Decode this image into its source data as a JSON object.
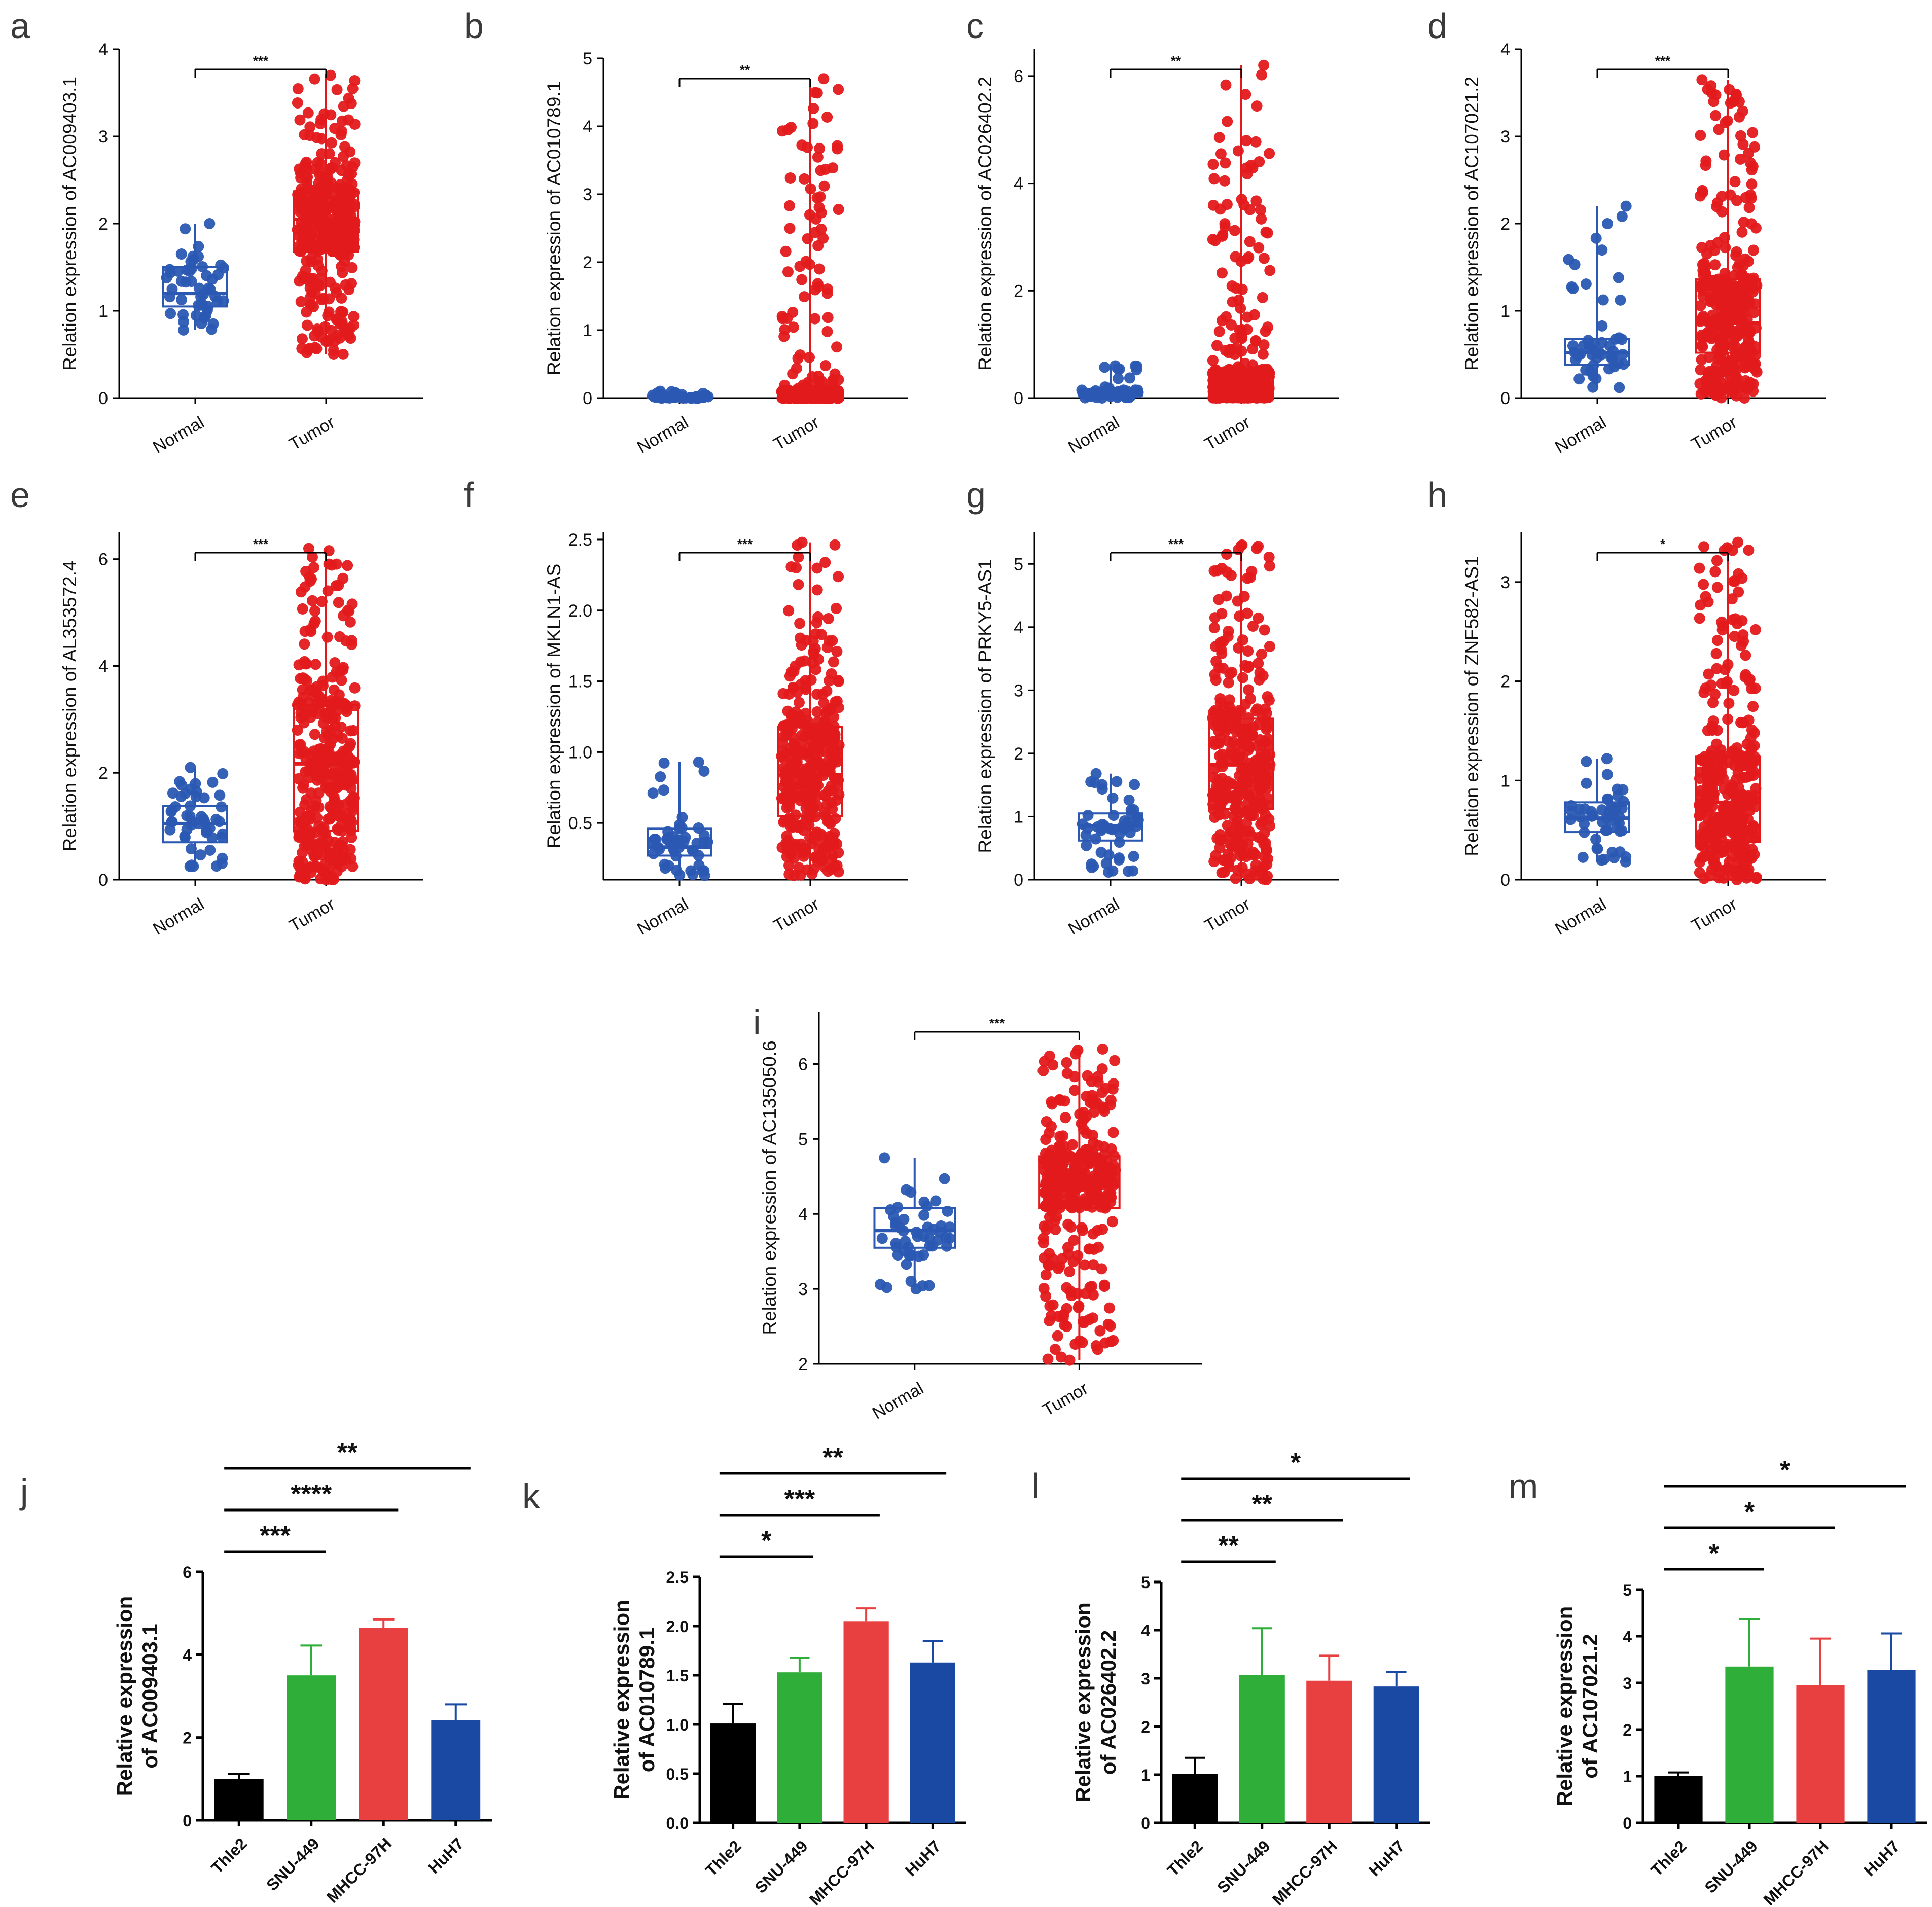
{
  "colors": {
    "normal": "#2a58b3",
    "tumor": "#e31a1c",
    "black": "#000000",
    "green": "#2fae3a",
    "red_bar": "#e84040",
    "blue_bar": "#1a49a3"
  },
  "chart_data": [
    {
      "panel": "a",
      "type": "box_strip",
      "ylabel": "Relation expression of AC009403.1",
      "categories": [
        "Normal",
        "Tumor"
      ],
      "ylim": [
        0,
        4
      ],
      "yticks": [
        0,
        1,
        2,
        3,
        4
      ],
      "normal": {
        "q1": 1.05,
        "median": 1.2,
        "q3": 1.5,
        "lo": 0.78,
        "hi": 2.0,
        "n": 50
      },
      "tumor": {
        "q1": 1.68,
        "median": 2.05,
        "q3": 2.37,
        "lo": 0.5,
        "hi": 3.7,
        "n": 350
      },
      "significance": "***"
    },
    {
      "panel": "b",
      "type": "box_strip",
      "ylabel": "Relation expression of AC010789.1",
      "categories": [
        "Normal",
        "Tumor"
      ],
      "ylim": [
        0,
        5
      ],
      "yticks": [
        0,
        1,
        2,
        3,
        4,
        5
      ],
      "normal": {
        "q1": 0.0,
        "median": 0.01,
        "q3": 0.02,
        "lo": 0.0,
        "hi": 0.1,
        "n": 50
      },
      "tumor": {
        "q1": 0.0,
        "median": 0.05,
        "q3": 0.12,
        "lo": 0.0,
        "hi": 4.7,
        "n": 350
      },
      "significance": "**"
    },
    {
      "panel": "c",
      "type": "box_strip",
      "ylabel": "Relation expression of AC026402.2",
      "categories": [
        "Normal",
        "Tumor"
      ],
      "ylim": [
        0,
        6.5
      ],
      "yticks": [
        0,
        2,
        4,
        6
      ],
      "normal": {
        "q1": 0.05,
        "median": 0.1,
        "q3": 0.15,
        "lo": 0.0,
        "hi": 0.6,
        "n": 50
      },
      "tumor": {
        "q1": 0.02,
        "median": 0.15,
        "q3": 0.52,
        "lo": 0.0,
        "hi": 6.2,
        "n": 350
      },
      "significance": "**"
    },
    {
      "panel": "d",
      "type": "box_strip",
      "ylabel": "Relation expression of AC107021.2",
      "categories": [
        "Normal",
        "Tumor"
      ],
      "ylim": [
        0,
        4
      ],
      "yticks": [
        0,
        1,
        2,
        3,
        4
      ],
      "normal": {
        "q1": 0.38,
        "median": 0.52,
        "q3": 0.68,
        "lo": 0.12,
        "hi": 2.2,
        "n": 50
      },
      "tumor": {
        "q1": 0.52,
        "median": 0.86,
        "q3": 1.36,
        "lo": 0.0,
        "hi": 3.65,
        "n": 350
      },
      "significance": "***"
    },
    {
      "panel": "e",
      "type": "box_strip",
      "ylabel": "Relation expression of AL353572.4",
      "categories": [
        "Normal",
        "Tumor"
      ],
      "ylim": [
        0,
        6.5
      ],
      "yticks": [
        0,
        2,
        4,
        6
      ],
      "normal": {
        "q1": 0.7,
        "median": 1.05,
        "q3": 1.38,
        "lo": 0.25,
        "hi": 2.1,
        "n": 50
      },
      "tumor": {
        "q1": 0.92,
        "median": 2.17,
        "q3": 3.27,
        "lo": 0.0,
        "hi": 6.2,
        "n": 350
      },
      "significance": "***"
    },
    {
      "panel": "f",
      "type": "box_strip",
      "ylabel": "Relation expression of MKLN1-AS",
      "categories": [
        "Normal",
        "Tumor"
      ],
      "ylim": [
        0.1,
        2.55
      ],
      "yticks": [
        0.5,
        1.0,
        1.5,
        2.0,
        2.5
      ],
      "ytick_labels": [
        "0.5",
        "1.0",
        "1.5",
        "2.0",
        "2.5"
      ],
      "normal": {
        "q1": 0.27,
        "median": 0.33,
        "q3": 0.46,
        "lo": 0.13,
        "hi": 0.93,
        "n": 50
      },
      "tumor": {
        "q1": 0.55,
        "median": 0.84,
        "q3": 1.18,
        "lo": 0.13,
        "hi": 2.48,
        "n": 350
      },
      "significance": "***"
    },
    {
      "panel": "g",
      "type": "box_strip",
      "ylabel": "Relation expression of PRKY5-AS1",
      "categories": [
        "Normal",
        "Tumor"
      ],
      "ylim": [
        0,
        5.5
      ],
      "yticks": [
        0,
        1,
        2,
        3,
        4,
        5
      ],
      "normal": {
        "q1": 0.62,
        "median": 0.85,
        "q3": 1.05,
        "lo": 0.12,
        "hi": 1.68,
        "n": 50
      },
      "tumor": {
        "q1": 1.12,
        "median": 1.82,
        "q3": 2.55,
        "lo": 0.0,
        "hi": 5.3,
        "n": 350
      },
      "significance": "***"
    },
    {
      "panel": "h",
      "type": "box_strip",
      "ylabel": "Relation expression of ZNF582-AS1",
      "categories": [
        "Normal",
        "Tumor"
      ],
      "ylim": [
        0,
        3.5
      ],
      "yticks": [
        0,
        1,
        2,
        3
      ],
      "normal": {
        "q1": 0.48,
        "median": 0.62,
        "q3": 0.78,
        "lo": 0.18,
        "hi": 1.22,
        "n": 50
      },
      "tumor": {
        "q1": 0.38,
        "median": 0.78,
        "q3": 1.24,
        "lo": 0.0,
        "hi": 3.4,
        "n": 350
      },
      "significance": "*"
    },
    {
      "panel": "i",
      "type": "box_strip",
      "ylabel": "Relation expression of AC135050.6",
      "categories": [
        "Normal",
        "Tumor"
      ],
      "ylim": [
        2,
        6.7
      ],
      "yticks": [
        2,
        3,
        4,
        5,
        6
      ],
      "normal": {
        "q1": 3.55,
        "median": 3.78,
        "q3": 4.08,
        "lo": 3.0,
        "hi": 4.75,
        "n": 50
      },
      "tumor": {
        "q1": 4.08,
        "median": 4.38,
        "q3": 4.77,
        "lo": 2.05,
        "hi": 6.2,
        "n": 350
      },
      "significance": "***"
    },
    {
      "panel": "j",
      "type": "bar",
      "ylabel_lines": [
        "Relative expression",
        "of AC009403.1"
      ],
      "categories": [
        "Thle2",
        "SNU-449",
        "MHCC-97H",
        "HuH7"
      ],
      "values": [
        1.0,
        3.5,
        4.65,
        2.42
      ],
      "errors": [
        0.12,
        0.72,
        0.2,
        0.38
      ],
      "ylim": [
        0,
        6
      ],
      "yticks": [
        0,
        2,
        4,
        6
      ],
      "ytick_labels": [
        "0",
        "2",
        "4",
        "6"
      ],
      "comparisons": [
        {
          "from": 0,
          "to": 1,
          "label": "***"
        },
        {
          "from": 0,
          "to": 2,
          "label": "****"
        },
        {
          "from": 0,
          "to": 3,
          "label": "**"
        }
      ]
    },
    {
      "panel": "k",
      "type": "bar",
      "ylabel_lines": [
        "Relative expression",
        "of AC010789.1"
      ],
      "categories": [
        "Thle2",
        "SNU-449",
        "MHCC-97H",
        "HuH7"
      ],
      "values": [
        1.01,
        1.53,
        2.05,
        1.63
      ],
      "errors": [
        0.2,
        0.15,
        0.13,
        0.22
      ],
      "ylim": [
        0,
        2.5
      ],
      "yticks": [
        0,
        0.5,
        1.0,
        1.5,
        2.0,
        2.5
      ],
      "ytick_labels": [
        "0.0",
        "0.5",
        "1.0",
        "1.5",
        "2.0",
        "2.5"
      ],
      "comparisons": [
        {
          "from": 0,
          "to": 1,
          "label": "*"
        },
        {
          "from": 0,
          "to": 2,
          "label": "***"
        },
        {
          "from": 0,
          "to": 3,
          "label": "**"
        }
      ]
    },
    {
      "panel": "l",
      "type": "bar",
      "ylabel_lines": [
        "Relative expression",
        "of AC026402.2"
      ],
      "categories": [
        "Thle2",
        "SNU-449",
        "MHCC-97H",
        "HuH7"
      ],
      "values": [
        1.02,
        3.07,
        2.95,
        2.83
      ],
      "errors": [
        0.33,
        0.97,
        0.52,
        0.3
      ],
      "ylim": [
        0,
        5
      ],
      "yticks": [
        0,
        1,
        2,
        3,
        4,
        5
      ],
      "ytick_labels": [
        "0",
        "1",
        "2",
        "3",
        "4",
        "5"
      ],
      "comparisons": [
        {
          "from": 0,
          "to": 1,
          "label": "**"
        },
        {
          "from": 0,
          "to": 2,
          "label": "**"
        },
        {
          "from": 0,
          "to": 3,
          "label": "*"
        }
      ]
    },
    {
      "panel": "m",
      "type": "bar",
      "ylabel_lines": [
        "Relative expression",
        "of AC107021.2"
      ],
      "categories": [
        "Thle2",
        "SNU-449",
        "MHCC-97H",
        "HuH7"
      ],
      "values": [
        1.0,
        3.35,
        2.95,
        3.28
      ],
      "errors": [
        0.08,
        1.02,
        1.0,
        0.78
      ],
      "ylim": [
        0,
        5
      ],
      "yticks": [
        0,
        1,
        2,
        3,
        4,
        5
      ],
      "ytick_labels": [
        "0",
        "1",
        "2",
        "3",
        "4",
        "5"
      ],
      "comparisons": [
        {
          "from": 0,
          "to": 1,
          "label": "*"
        },
        {
          "from": 0,
          "to": 2,
          "label": "*"
        },
        {
          "from": 0,
          "to": 3,
          "label": "*"
        }
      ]
    }
  ]
}
